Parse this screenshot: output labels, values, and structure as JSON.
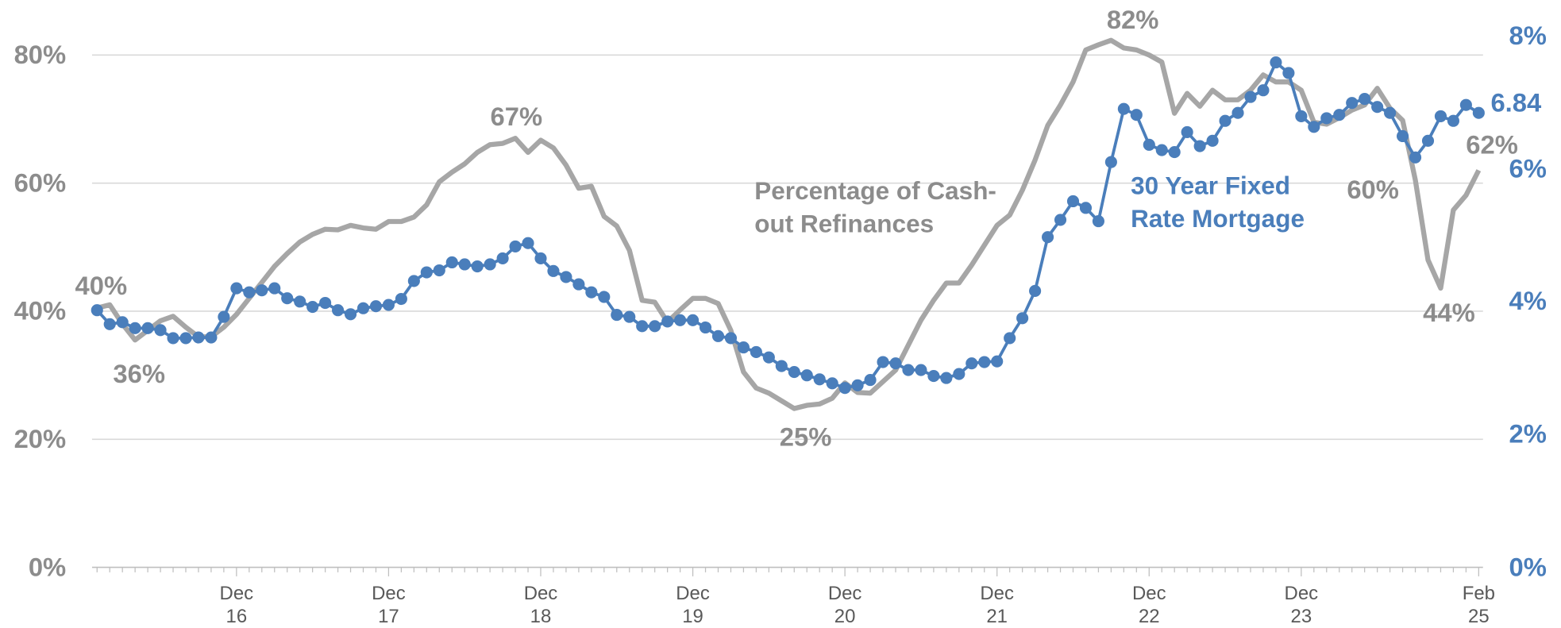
{
  "chart_data": {
    "type": "line",
    "categories": [
      null,
      null,
      null,
      null,
      null,
      null,
      null,
      null,
      null,
      null,
      null,
      "Dec\n16",
      null,
      null,
      null,
      null,
      null,
      null,
      null,
      null,
      null,
      null,
      null,
      "Dec\n17",
      null,
      null,
      null,
      null,
      null,
      null,
      null,
      null,
      null,
      null,
      null,
      "Dec\n18",
      null,
      null,
      null,
      null,
      null,
      null,
      null,
      null,
      null,
      null,
      null,
      "Dec\n19",
      null,
      null,
      null,
      null,
      null,
      null,
      null,
      null,
      null,
      null,
      null,
      "Dec\n20",
      null,
      null,
      null,
      null,
      null,
      null,
      null,
      null,
      null,
      null,
      null,
      "Dec\n21",
      null,
      null,
      null,
      null,
      null,
      null,
      null,
      null,
      null,
      null,
      null,
      "Dec\n22",
      null,
      null,
      null,
      null,
      null,
      null,
      null,
      null,
      null,
      null,
      null,
      "Dec\n23",
      null,
      null,
      null,
      null,
      null,
      null,
      null,
      null,
      null,
      null,
      null,
      null,
      null,
      "Feb\n25"
    ],
    "series": [
      {
        "name": "Percentage of Cash-\nout Refinances",
        "color": "#a6a6a6",
        "values": [
          40.5,
          41,
          38,
          35.5,
          37,
          38.5,
          39.2,
          37.5,
          36,
          36,
          37.5,
          39.5,
          42,
          44.5,
          47,
          49,
          50.8,
          52,
          52.8,
          52.7,
          53.4,
          53,
          52.8,
          54,
          54,
          54.7,
          56.6,
          60.2,
          61.7,
          63,
          64.8,
          66,
          66.2,
          67,
          64.8,
          66.7,
          65.5,
          62.8,
          59.2,
          59.5,
          54.8,
          53.3,
          49.5,
          41.7,
          41.4,
          38.3,
          40.2,
          42,
          42,
          41.2,
          37,
          30.5,
          28,
          27.2,
          26,
          24.8,
          25.3,
          25.5,
          26.4,
          28.8,
          27.3,
          27.2,
          29,
          30.8,
          34.7,
          38.6,
          41.7,
          44.4,
          44.4,
          47.2,
          50.3,
          53.4,
          55,
          58.9,
          63.6,
          69,
          72.2,
          75.8,
          80.8,
          81.6,
          82.3,
          81.1,
          80.8,
          80,
          78.9,
          70.9,
          74,
          72,
          74.5,
          73,
          73,
          74.5,
          76.9,
          75.8,
          75.8,
          74.5,
          69.5,
          69.2,
          70.2,
          71.4,
          72.2,
          74.8,
          71.7,
          69.8,
          60.5,
          48,
          43.6,
          55.8,
          58.1,
          62
        ],
        "annotations": [
          "40%",
          "36%",
          "67%",
          "25%",
          "82%",
          "60%",
          "44%",
          "62%"
        ]
      },
      {
        "name": "30 Year Fixed\nRate Mortgage",
        "color": "#4a7ebb",
        "axis": "y2",
        "markers": true,
        "values": [
          3.87,
          3.66,
          3.69,
          3.6,
          3.6,
          3.57,
          3.45,
          3.45,
          3.46,
          3.46,
          3.77,
          4.2,
          4.14,
          4.17,
          4.2,
          4.05,
          4,
          3.92,
          3.98,
          3.87,
          3.81,
          3.9,
          3.93,
          3.95,
          4.04,
          4.31,
          4.44,
          4.47,
          4.59,
          4.56,
          4.53,
          4.56,
          4.65,
          4.83,
          4.88,
          4.65,
          4.46,
          4.37,
          4.26,
          4.14,
          4.07,
          3.8,
          3.77,
          3.63,
          3.63,
          3.7,
          3.72,
          3.72,
          3.61,
          3.48,
          3.45,
          3.31,
          3.24,
          3.16,
          3.03,
          2.94,
          2.89,
          2.83,
          2.77,
          2.7,
          2.74,
          2.82,
          3.09,
          3.07,
          2.97,
          2.97,
          2.88,
          2.85,
          2.91,
          3.07,
          3.09,
          3.1,
          3.45,
          3.75,
          4.16,
          4.97,
          5.23,
          5.51,
          5.41,
          5.21,
          6.1,
          6.9,
          6.81,
          6.36,
          6.28,
          6.25,
          6.55,
          6.34,
          6.42,
          6.72,
          6.84,
          7.08,
          7.18,
          7.6,
          7.44,
          6.79,
          6.63,
          6.76,
          6.81,
          6.99,
          7.05,
          6.93,
          6.84,
          6.49,
          6.17,
          6.42,
          6.79,
          6.72,
          6.96,
          6.84
        ],
        "annotations": [
          "6.84"
        ]
      }
    ],
    "ylim": [
      0,
      83
    ],
    "yticks": [
      {
        "value": 0,
        "label": "0%"
      },
      {
        "value": 20,
        "label": "20%"
      },
      {
        "value": 40,
        "label": "40%"
      },
      {
        "value": 60,
        "label": "60%"
      },
      {
        "value": 80,
        "label": "80%"
      }
    ],
    "y2lim": [
      0,
      8
    ],
    "y2ticks": [
      {
        "value": 0,
        "label": "0%"
      },
      {
        "value": 2,
        "label": "2%"
      },
      {
        "value": 4,
        "label": "4%"
      },
      {
        "value": 6,
        "label": "6%"
      },
      {
        "value": 8,
        "label": "8%"
      }
    ],
    "grid": true
  }
}
